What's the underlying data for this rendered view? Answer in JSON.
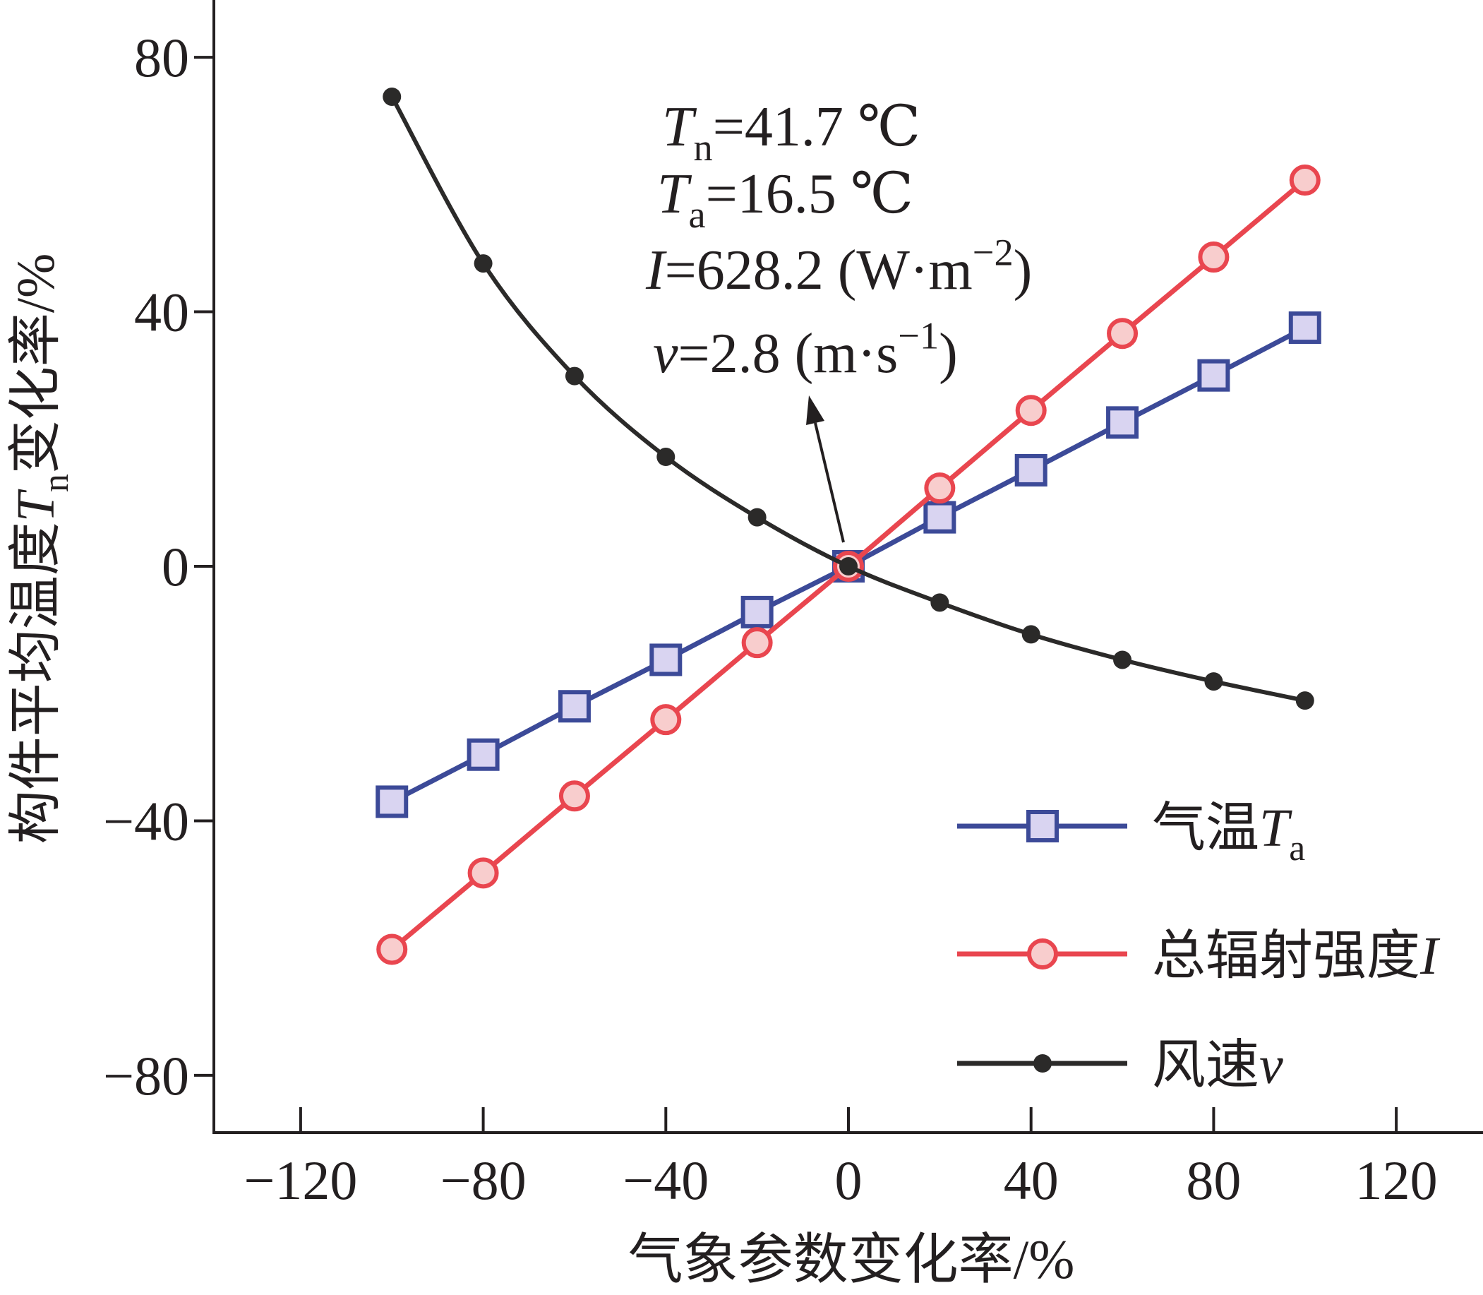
{
  "chart_data": {
    "type": "line",
    "x": [
      -100,
      -80,
      -60,
      -40,
      -20,
      0,
      20,
      40,
      60,
      80,
      100
    ],
    "series": [
      {
        "name": [
          {
            "text": "气温"
          },
          {
            "var": "T"
          },
          {
            "sub": "a"
          }
        ],
        "color": "#3C4A98",
        "marker_fill": "#D9D4F1",
        "marker": "square",
        "smooth": false,
        "values": [
          -37.0,
          -29.6,
          -22.0,
          -14.7,
          -7.2,
          0,
          7.7,
          15.1,
          22.6,
          30.0,
          37.5
        ]
      },
      {
        "name": [
          {
            "text": "总辐射强度"
          },
          {
            "var": "I"
          }
        ],
        "color": "#E9464F",
        "marker_fill": "#F8CDCD",
        "marker": "circle",
        "smooth": false,
        "values": [
          -60.2,
          -48.2,
          -36.1,
          -24.1,
          -12.0,
          0,
          12.3,
          24.5,
          36.6,
          48.6,
          60.7
        ]
      },
      {
        "name": [
          {
            "text": "风速"
          },
          {
            "var": "v"
          }
        ],
        "color": "#2B2A29",
        "marker_fill": "#2B2A29",
        "marker": "dot",
        "smooth": true,
        "values": [
          73.8,
          47.6,
          29.9,
          17.2,
          7.7,
          0,
          -5.7,
          -10.7,
          -14.7,
          -18.1,
          -21.1
        ]
      }
    ],
    "xlabel": "气象参数变化率/%",
    "ylabel": [
      {
        "text": "构件平均温度"
      },
      {
        "var": "T"
      },
      {
        "sub": "n"
      },
      {
        "text": "变化率/%"
      }
    ],
    "xlim": [
      -139,
      139
    ],
    "ylim": [
      -89,
      89
    ],
    "x_ticks": [
      -120,
      -80,
      -40,
      0,
      40,
      80,
      120
    ],
    "x_tick_labels": [
      "−120",
      "−80",
      "−40",
      "0",
      "40",
      "80",
      "120"
    ],
    "y_ticks": [
      -80,
      -40,
      0,
      40,
      80
    ],
    "y_tick_labels": [
      "−80",
      "−40",
      "0",
      "40",
      "80"
    ],
    "grid": false,
    "legend": "bottom-right",
    "annotation": {
      "lines": [
        [
          {
            "var": "T"
          },
          {
            "sub": "n"
          },
          {
            "text": "=41.7 ℃"
          }
        ],
        [
          {
            "var": "T"
          },
          {
            "sub": "a"
          },
          {
            "text": "=16.5 ℃"
          }
        ],
        [
          {
            "var": "I"
          },
          {
            "text": "=628.2 (W·m"
          },
          {
            "sup": "−2"
          },
          {
            "text": ")"
          }
        ],
        [
          {
            "var": "v"
          },
          {
            "text": "=2.8 (m·s"
          },
          {
            "sup": "−1"
          },
          {
            "text": ")"
          }
        ]
      ]
    }
  }
}
